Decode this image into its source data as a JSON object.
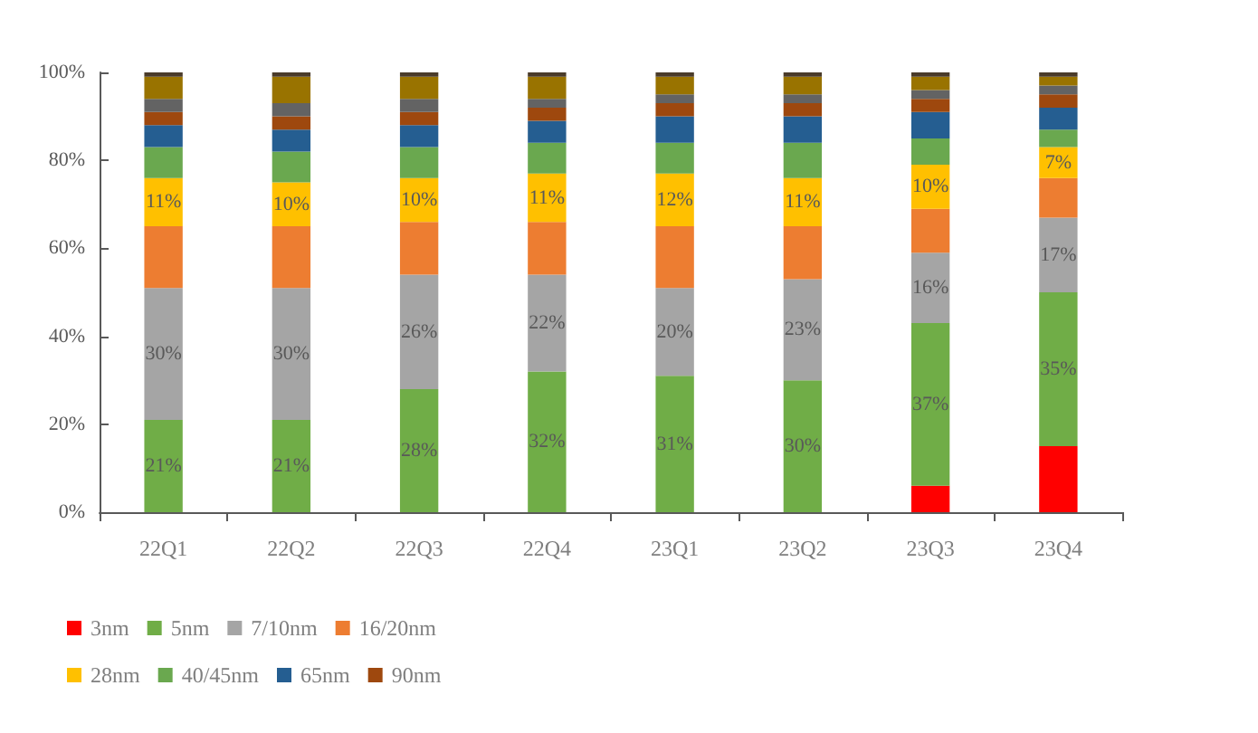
{
  "chart_data": {
    "type": "bar",
    "stacked": true,
    "categories": [
      "22Q1",
      "22Q2",
      "22Q3",
      "22Q4",
      "23Q1",
      "23Q2",
      "23Q3",
      "23Q4"
    ],
    "series": [
      {
        "name": "3nm",
        "color": "#ff0000",
        "values": [
          0,
          0,
          0,
          0,
          0,
          0,
          6,
          15
        ]
      },
      {
        "name": "5nm",
        "color": "#70ad47",
        "values": [
          21,
          21,
          28,
          32,
          31,
          30,
          37,
          35
        ],
        "value_labels": [
          "21%",
          "21%",
          "28%",
          "32%",
          "31%",
          "30%",
          "37%",
          "35%"
        ]
      },
      {
        "name": "7/10nm",
        "color": "#a5a5a5",
        "values": [
          30,
          30,
          26,
          22,
          20,
          23,
          16,
          17
        ],
        "value_labels": [
          "30%",
          "30%",
          "26%",
          "22%",
          "20%",
          "23%",
          "16%",
          "17%"
        ]
      },
      {
        "name": "16/20nm",
        "color": "#ed7d31",
        "values": [
          14,
          14,
          12,
          12,
          14,
          12,
          10,
          9
        ]
      },
      {
        "name": "28nm",
        "color": "#ffc000",
        "values": [
          11,
          10,
          10,
          11,
          12,
          11,
          10,
          7
        ],
        "value_labels": [
          "11%",
          "10%",
          "10%",
          "11%",
          "12%",
          "11%",
          "10%",
          "7%"
        ]
      },
      {
        "name": "40/45nm",
        "color": "#6aa84f",
        "values": [
          7,
          7,
          7,
          7,
          7,
          8,
          6,
          4
        ]
      },
      {
        "name": "65nm",
        "color": "#255e91",
        "values": [
          5,
          5,
          5,
          5,
          6,
          6,
          6,
          5
        ]
      },
      {
        "name": "90nm",
        "color": "#9e480e",
        "values": [
          3,
          3,
          3,
          3,
          3,
          3,
          3,
          3
        ]
      },
      {
        "color": "#636363",
        "values": [
          3,
          3,
          3,
          2,
          2,
          2,
          2,
          2
        ]
      },
      {
        "color": "#997300",
        "values": [
          5,
          6,
          5,
          5,
          4,
          4,
          3,
          2
        ]
      },
      {
        "color": "#4a3b2a",
        "values": [
          1,
          1,
          1,
          1,
          1,
          1,
          1,
          1
        ]
      }
    ],
    "ylim": [
      0,
      100
    ],
    "yticks": [
      {
        "value": 0,
        "label": "0%"
      },
      {
        "value": 20,
        "label": "20%"
      },
      {
        "value": 40,
        "label": "40%"
      },
      {
        "value": 60,
        "label": "60%"
      },
      {
        "value": 80,
        "label": "80%"
      },
      {
        "value": 100,
        "label": "100%"
      }
    ],
    "grid": false,
    "legend": "bottom"
  }
}
